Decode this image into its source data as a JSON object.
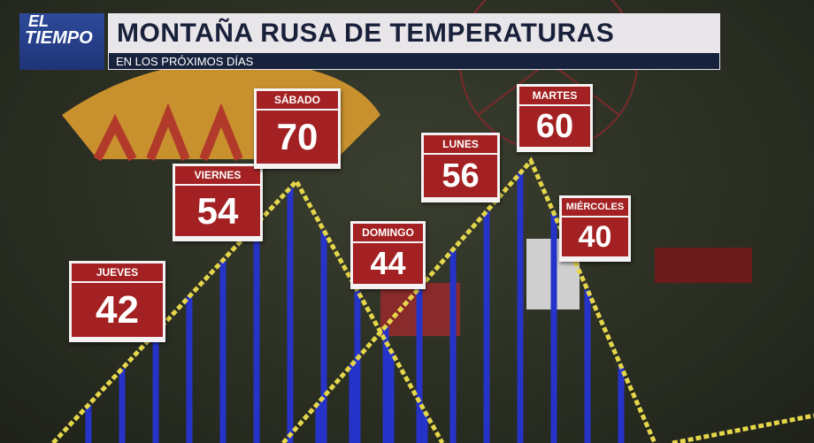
{
  "logo": {
    "line1": "EL",
    "line2": "TIEMPO"
  },
  "title": "MONTAÑA RUSA DE TEMPERATURAS",
  "subtitle": "EN LOS PRÓXIMOS DÍAS",
  "forecast": [
    {
      "day": "JUEVES",
      "temp": "42"
    },
    {
      "day": "VIERNES",
      "temp": "54"
    },
    {
      "day": "SÁBADO",
      "temp": "70"
    },
    {
      "day": "DOMINGO",
      "temp": "44"
    },
    {
      "day": "LUNES",
      "temp": "56"
    },
    {
      "day": "MARTES",
      "temp": "60"
    },
    {
      "day": "MIÉRCOLES",
      "temp": "40"
    }
  ],
  "colors": {
    "card_red": "#a32122",
    "title_navy": "#17223d",
    "track_yellow": "#e5d64a",
    "post_blue": "#2633c9"
  }
}
